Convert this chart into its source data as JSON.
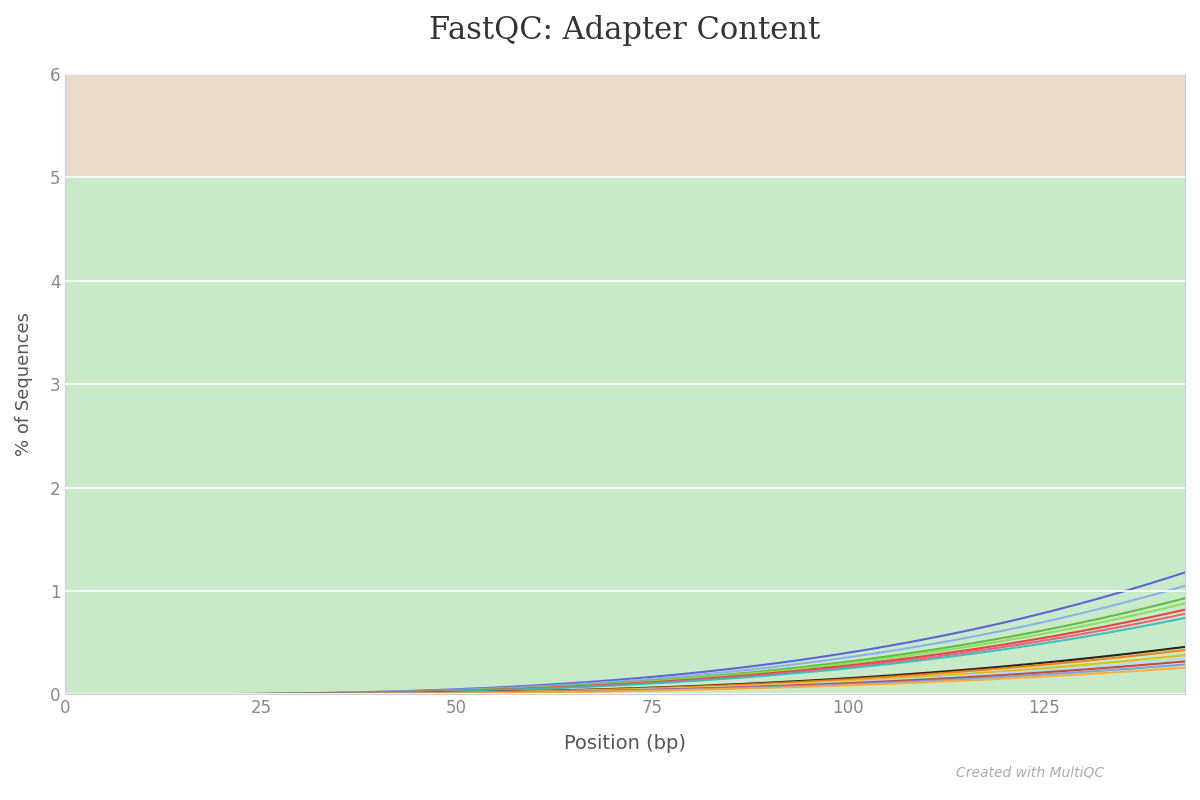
{
  "title": "FastQC: Adapter Content",
  "xlabel": "Position (bp)",
  "ylabel": "% of Sequences",
  "xlim": [
    0,
    143
  ],
  "ylim": [
    0,
    6
  ],
  "yticks": [
    0,
    1,
    2,
    3,
    4,
    5,
    6
  ],
  "xticks": [
    0,
    25,
    50,
    75,
    100,
    125
  ],
  "plot_bg_green": "#c8eac8",
  "plot_bg_tan": "#e8dcc8",
  "green_yspan": [
    0,
    5
  ],
  "tan_yspan": [
    5,
    6
  ],
  "watermark": "Created with MultiQC",
  "x_max": 143,
  "lines": [
    {
      "color": "#5555dd",
      "end": 1.18
    },
    {
      "color": "#88aaee",
      "end": 1.05
    },
    {
      "color": "#55bb33",
      "end": 0.93
    },
    {
      "color": "#88dd55",
      "end": 0.88
    },
    {
      "color": "#ee3333",
      "end": 0.82
    },
    {
      "color": "#ee5577",
      "end": 0.78
    },
    {
      "color": "#33bbbb",
      "end": 0.74
    },
    {
      "color": "#111111",
      "end": 0.46
    },
    {
      "color": "#ff7700",
      "end": 0.43
    },
    {
      "color": "#ddbb00",
      "end": 0.38
    },
    {
      "color": "#aaddff",
      "end": 0.35
    },
    {
      "color": "#cc3333",
      "end": 0.32
    },
    {
      "color": "#7799dd",
      "end": 0.29
    },
    {
      "color": "#ffaa33",
      "end": 0.26
    }
  ]
}
